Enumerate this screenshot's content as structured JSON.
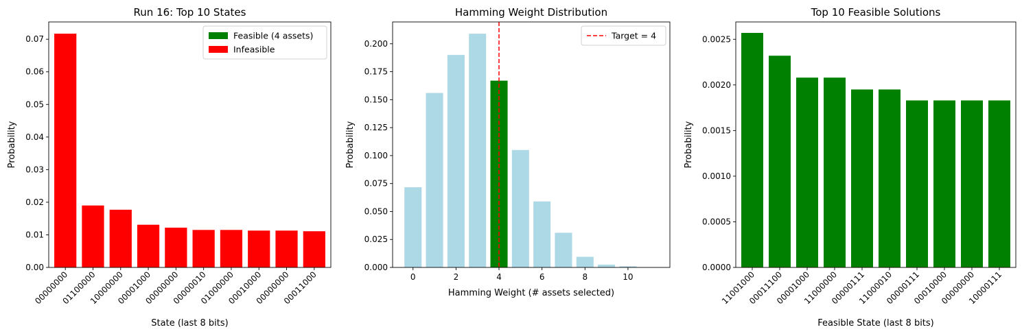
{
  "chart_data": [
    {
      "type": "bar",
      "title": "Run 16: Top 10 States",
      "xlabel": "State (last 8 bits)",
      "ylabel": "Probability",
      "categories": [
        "00000000",
        "01100000",
        "10000000",
        "00001000",
        "00000000",
        "00000010",
        "01000000",
        "00010000",
        "00000000",
        "00011000"
      ],
      "values": [
        0.0717,
        0.019,
        0.0177,
        0.0131,
        0.0122,
        0.0115,
        0.0115,
        0.0113,
        0.0113,
        0.0111
      ],
      "colors": [
        "#ff0000",
        "#ff0000",
        "#ff0000",
        "#ff0000",
        "#ff0000",
        "#ff0000",
        "#ff0000",
        "#ff0000",
        "#ff0000",
        "#ff0000"
      ],
      "ylim": [
        0,
        0.0753
      ],
      "yticks": [
        "0.00",
        "0.01",
        "0.02",
        "0.03",
        "0.04",
        "0.05",
        "0.06",
        "0.07"
      ],
      "ytick_values": [
        0,
        0.01,
        0.02,
        0.03,
        0.04,
        0.05,
        0.06,
        0.07
      ],
      "legend": {
        "placement": "top-right",
        "entries": [
          {
            "label": "Feasible (4 assets)",
            "color": "#008000"
          },
          {
            "label": "Infeasible",
            "color": "#ff0000"
          }
        ]
      }
    },
    {
      "type": "bar",
      "title": "Hamming Weight Distribution",
      "xlabel": "Hamming Weight (# assets selected)",
      "ylabel": "Probability",
      "x": [
        0,
        1,
        2,
        3,
        4,
        5,
        6,
        7,
        8,
        9,
        10,
        11
      ],
      "values": [
        0.0717,
        0.156,
        0.19,
        0.209,
        0.167,
        0.105,
        0.059,
        0.031,
        0.0095,
        0.0025,
        0.001,
        0.0
      ],
      "colors": [
        "#add8e6",
        "#add8e6",
        "#add8e6",
        "#add8e6",
        "#008000",
        "#add8e6",
        "#add8e6",
        "#add8e6",
        "#add8e6",
        "#add8e6",
        "#add8e6",
        "#add8e6"
      ],
      "xlim": [
        -0.95,
        11.95
      ],
      "ylim": [
        0,
        0.2195
      ],
      "xticks": [
        "0",
        "2",
        "4",
        "6",
        "8",
        "10"
      ],
      "xtick_values": [
        0,
        2,
        4,
        6,
        8,
        10
      ],
      "yticks": [
        "0.000",
        "0.025",
        "0.050",
        "0.075",
        "0.100",
        "0.125",
        "0.150",
        "0.175",
        "0.200"
      ],
      "ytick_values": [
        0,
        0.025,
        0.05,
        0.075,
        0.1,
        0.125,
        0.15,
        0.175,
        0.2
      ],
      "reference_line": {
        "x": 4,
        "label": "Target = 4",
        "color": "#ff0000",
        "style": "dashed"
      },
      "legend": {
        "placement": "top-right",
        "entries": [
          {
            "label": "Target = 4",
            "color": "#ff0000"
          }
        ]
      }
    },
    {
      "type": "bar",
      "title": "Top 10 Feasible Solutions",
      "xlabel": "Feasible State (last 8 bits)",
      "ylabel": "Probability",
      "categories": [
        "11001000",
        "00011100",
        "00001000",
        "11000000",
        "00000111",
        "11000010",
        "00000111",
        "00010000",
        "00000000",
        "10000111"
      ],
      "values": [
        0.00257,
        0.00232,
        0.00208,
        0.00208,
        0.00195,
        0.00195,
        0.00183,
        0.00183,
        0.00183,
        0.00183
      ],
      "colors": [
        "#008000",
        "#008000",
        "#008000",
        "#008000",
        "#008000",
        "#008000",
        "#008000",
        "#008000",
        "#008000",
        "#008000"
      ],
      "ylim": [
        0,
        0.00269
      ],
      "yticks": [
        "0.0000",
        "0.0005",
        "0.0010",
        "0.0015",
        "0.0020",
        "0.0025"
      ],
      "ytick_values": [
        0,
        0.0005,
        0.001,
        0.0015,
        0.002,
        0.0025
      ]
    }
  ]
}
